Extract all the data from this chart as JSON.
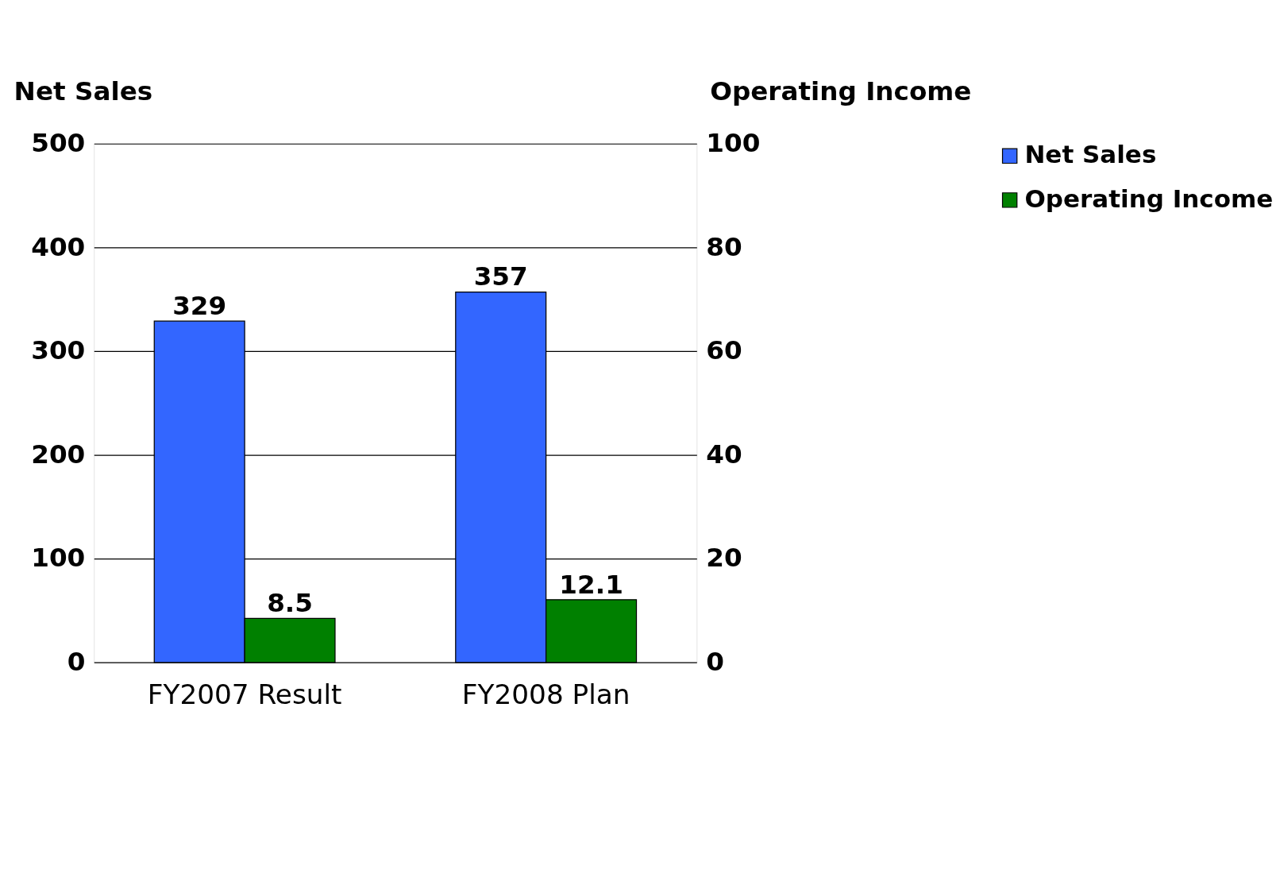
{
  "chart_data": {
    "type": "bar",
    "ylabel": "Net Sales",
    "y2label": "Operating Income",
    "categories": [
      "FY2007 Result",
      "FY2008 Plan"
    ],
    "series": [
      {
        "name": "Net Sales",
        "color": "#3366ff",
        "values": [
          329,
          357
        ]
      },
      {
        "name": "Operating Income",
        "color": "#008000",
        "values": [
          8.5,
          12.1
        ],
        "axis": "y2"
      }
    ],
    "ylim": [
      0,
      500
    ],
    "yticks": [
      0,
      100,
      200,
      300,
      400,
      500
    ],
    "y2lim": [
      0,
      100
    ],
    "y2ticks": [
      0,
      20,
      40,
      60,
      80,
      100
    ],
    "data_labels": true,
    "grid": "y",
    "legend": "right"
  }
}
